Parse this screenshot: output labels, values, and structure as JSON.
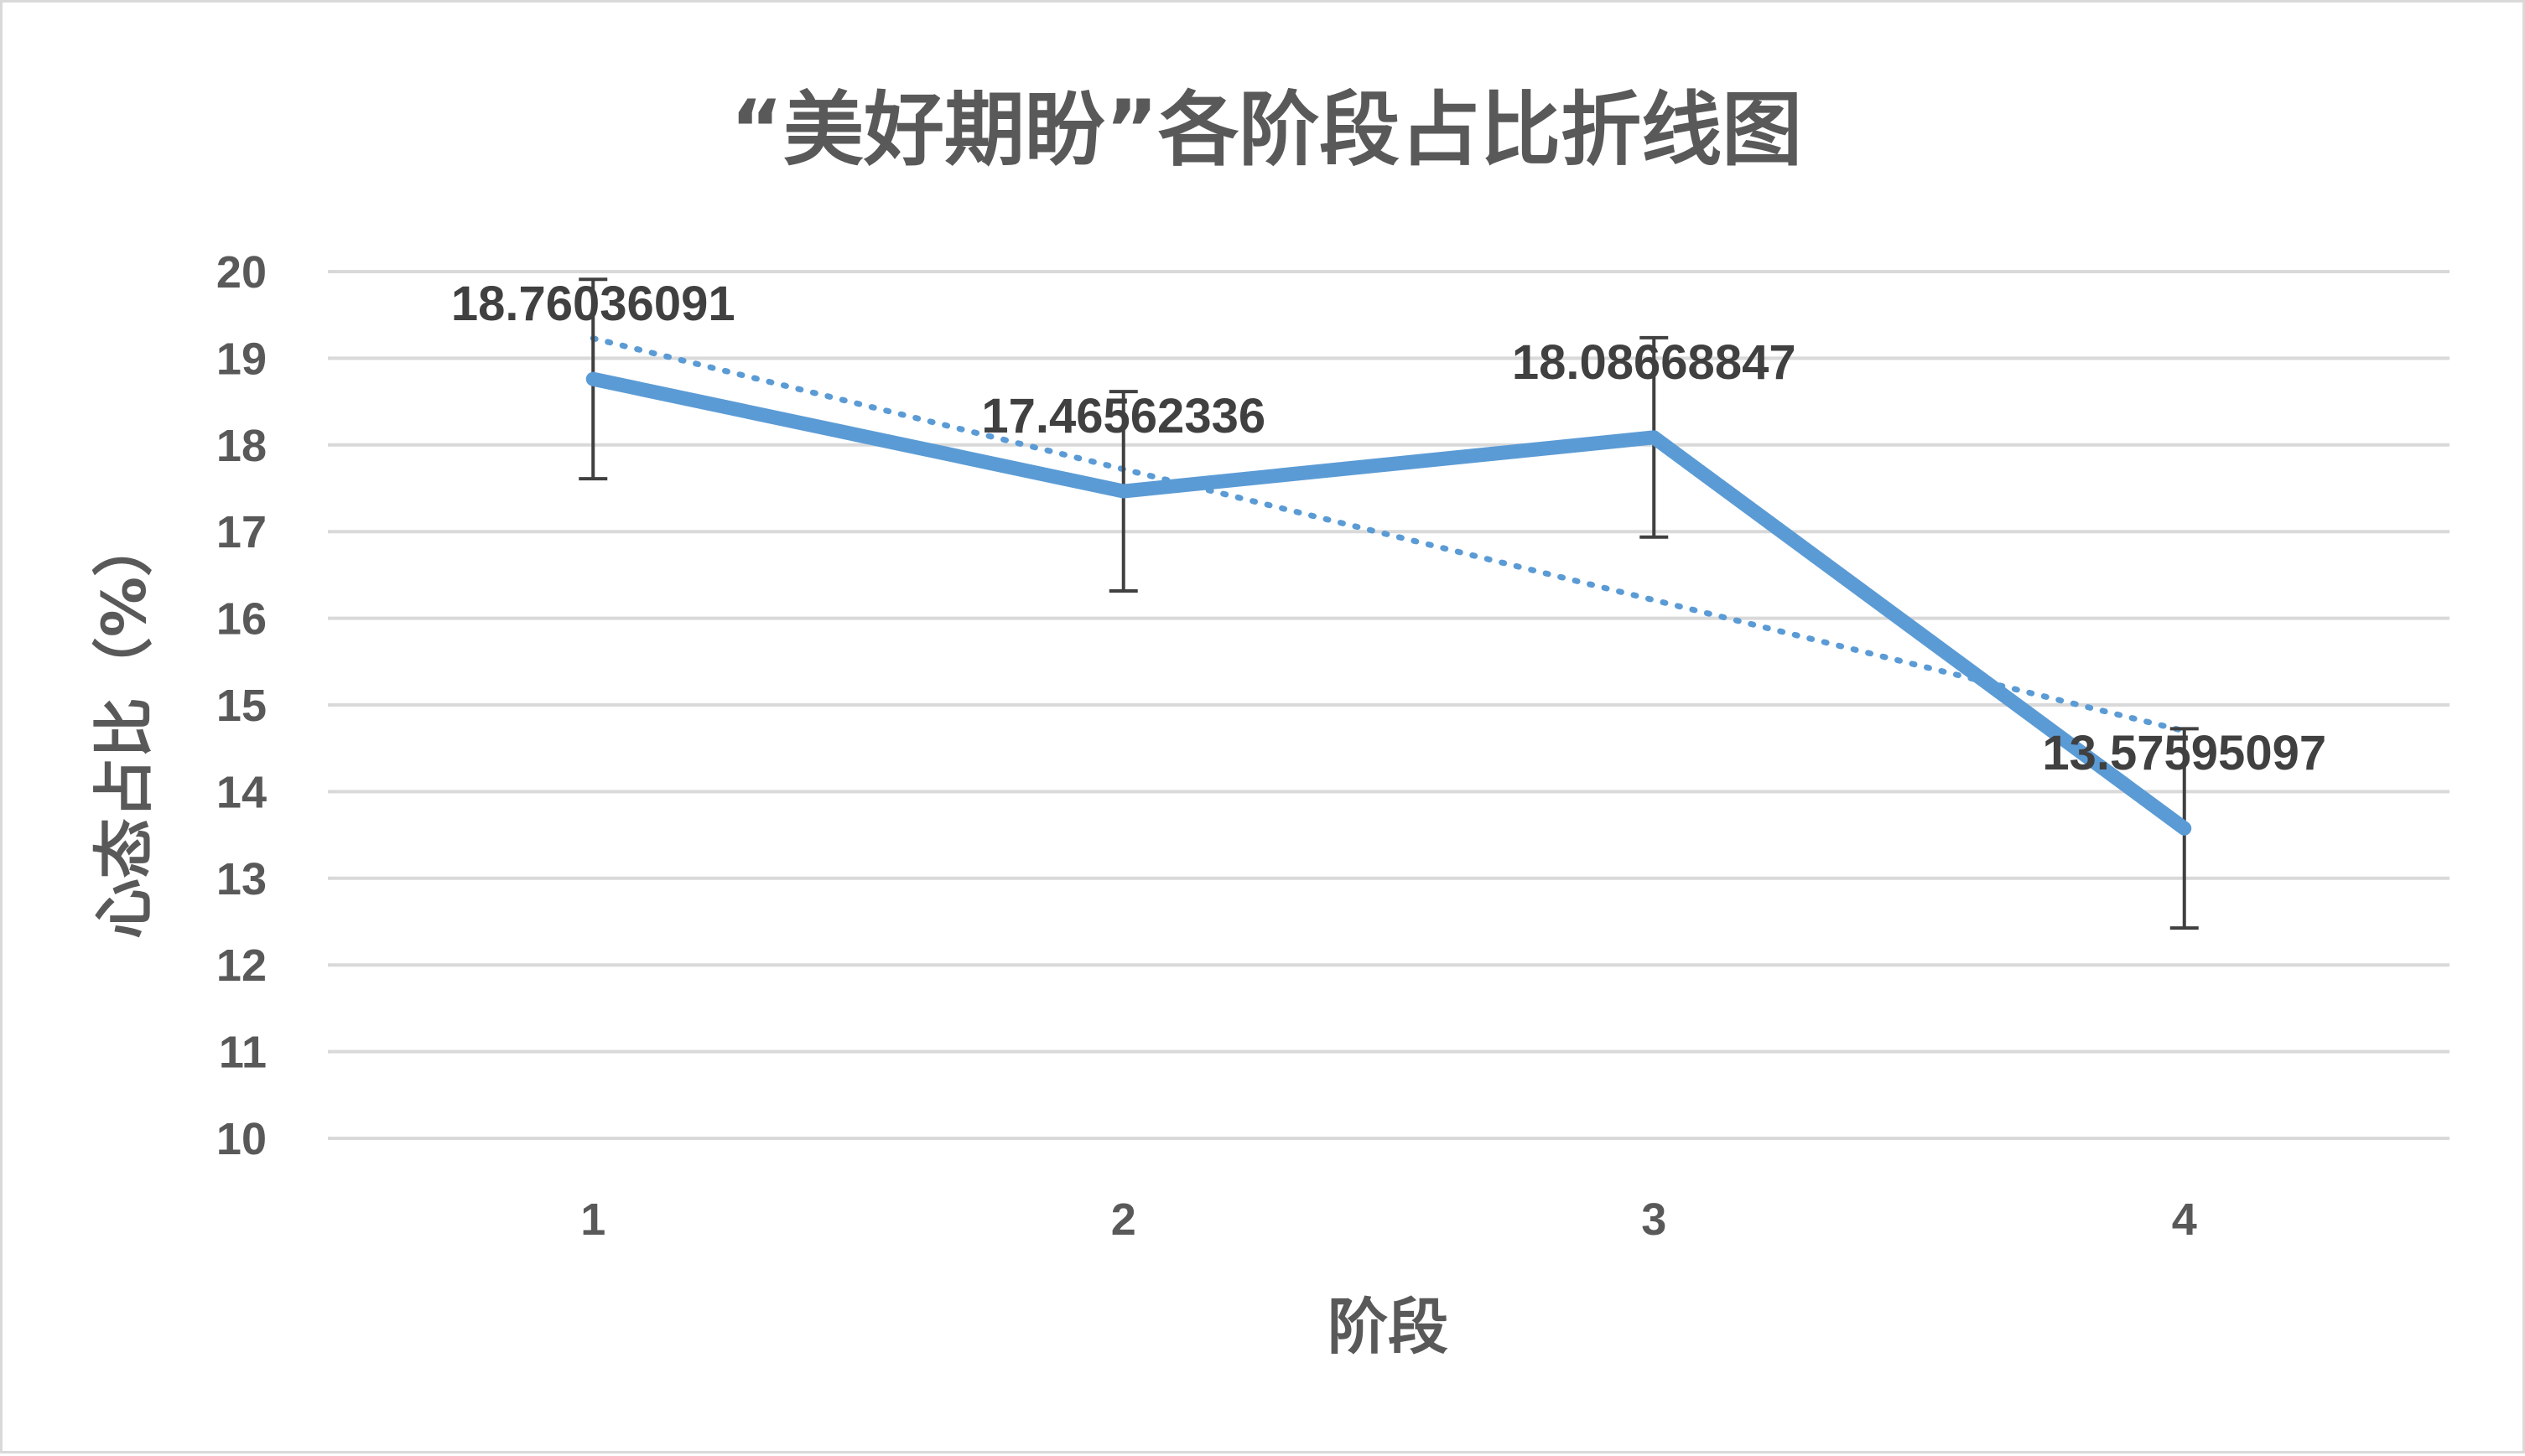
{
  "colors": {
    "series": "#5b9bd5",
    "trend": "#5b9bd5",
    "grid": "#d9d9d9",
    "error_bar": "#404040",
    "text": "#595959"
  },
  "chart_data": {
    "type": "line",
    "title": "“美好期盼”各阶段占比折线图",
    "xlabel": "阶段",
    "ylabel": "心态占比（%）",
    "categories": [
      "1",
      "2",
      "3",
      "4"
    ],
    "ylim": [
      10,
      20
    ],
    "yticks": [
      10,
      11,
      12,
      13,
      14,
      15,
      16,
      17,
      18,
      19,
      20
    ],
    "grid": true,
    "legend": "none",
    "series": [
      {
        "values": [
          18.76036091,
          17.46562336,
          18.08668847,
          13.57595097
        ],
        "data_labels": [
          "18.76036091",
          "17.46562336",
          "18.08668847",
          "13.57595097"
        ],
        "error_bar": 1.15
      }
    ],
    "trendline": {
      "type": "linear",
      "style": "dotted",
      "values": [
        19.23,
        17.72,
        16.21,
        14.7
      ]
    }
  }
}
